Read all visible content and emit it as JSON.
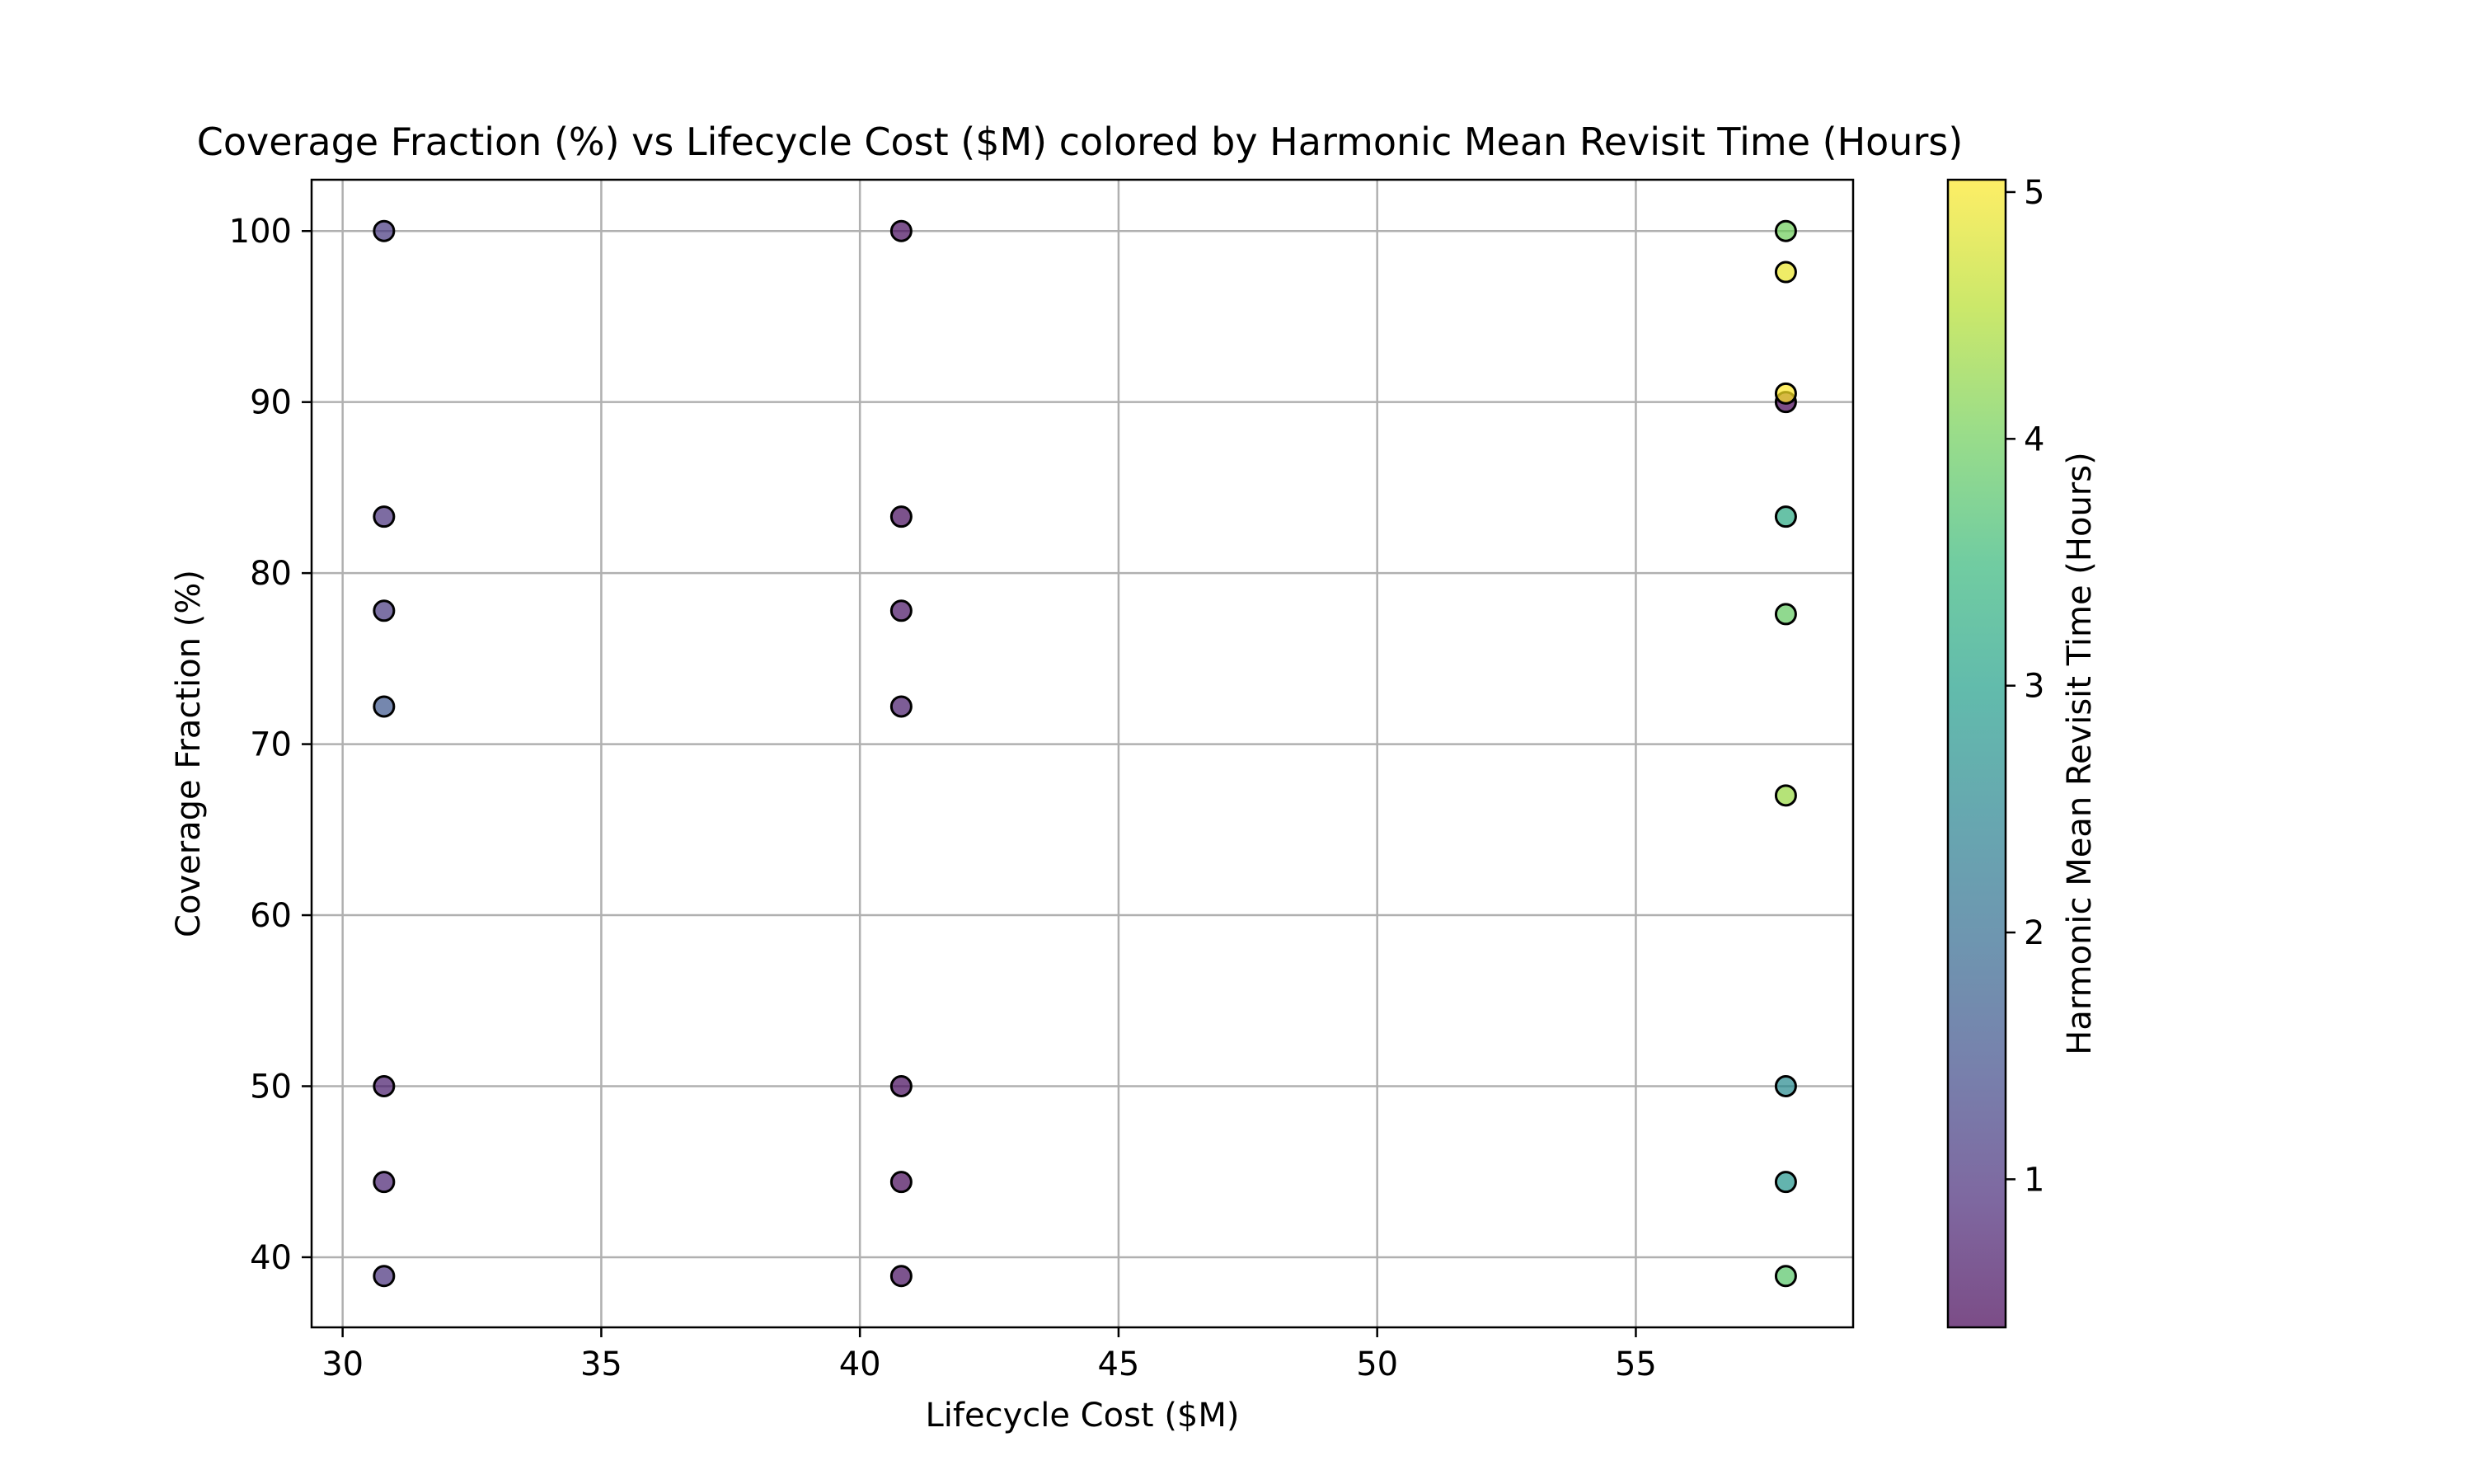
{
  "chart_data": {
    "type": "scatter",
    "title": "Coverage Fraction (%) vs Lifecycle Cost ($M) colored by Harmonic Mean Revisit Time (Hours)",
    "xlabel": "Lifecycle Cost ($M)",
    "ylabel": "Coverage Fraction (%)",
    "xlim": [
      29.4,
      59.2
    ],
    "ylim": [
      35.9,
      103.0
    ],
    "xticks": [
      30,
      35,
      40,
      45,
      50,
      55
    ],
    "yticks": [
      40,
      50,
      60,
      70,
      80,
      90,
      100
    ],
    "grid": true,
    "colormap": "viridis",
    "point_alpha": 0.7,
    "point_edge_color": "#000000",
    "colorbar": {
      "label": "Harmonic Mean Revisit Time (Hours)",
      "range": [
        0.4,
        5.05
      ],
      "ticks": [
        1,
        2,
        3,
        4,
        5
      ]
    },
    "points": [
      {
        "x": 30.8,
        "y": 100.0,
        "c": 1.1
      },
      {
        "x": 30.8,
        "y": 83.3,
        "c": 1.0
      },
      {
        "x": 30.8,
        "y": 77.8,
        "c": 1.1
      },
      {
        "x": 30.8,
        "y": 72.2,
        "c": 1.6
      },
      {
        "x": 30.8,
        "y": 50.0,
        "c": 0.7
      },
      {
        "x": 30.8,
        "y": 44.4,
        "c": 0.8
      },
      {
        "x": 30.8,
        "y": 38.9,
        "c": 1.0
      },
      {
        "x": 40.8,
        "y": 100.0,
        "c": 0.5
      },
      {
        "x": 40.8,
        "y": 83.3,
        "c": 0.5
      },
      {
        "x": 40.8,
        "y": 77.8,
        "c": 0.6
      },
      {
        "x": 40.8,
        "y": 72.2,
        "c": 0.7
      },
      {
        "x": 40.8,
        "y": 50.0,
        "c": 0.5
      },
      {
        "x": 40.8,
        "y": 44.4,
        "c": 0.45
      },
      {
        "x": 40.8,
        "y": 38.9,
        "c": 0.55
      },
      {
        "x": 57.9,
        "y": 90.0,
        "c": 0.4
      },
      {
        "x": 57.9,
        "y": 100.0,
        "c": 4.0
      },
      {
        "x": 57.9,
        "y": 97.6,
        "c": 4.9
      },
      {
        "x": 57.9,
        "y": 90.5,
        "c": 5.05
      },
      {
        "x": 57.9,
        "y": 83.3,
        "c": 3.2
      },
      {
        "x": 57.9,
        "y": 77.6,
        "c": 3.9
      },
      {
        "x": 57.9,
        "y": 67.0,
        "c": 4.3
      },
      {
        "x": 57.9,
        "y": 50.0,
        "c": 2.6
      },
      {
        "x": 57.9,
        "y": 44.4,
        "c": 2.8
      },
      {
        "x": 57.9,
        "y": 38.9,
        "c": 3.8
      }
    ]
  }
}
